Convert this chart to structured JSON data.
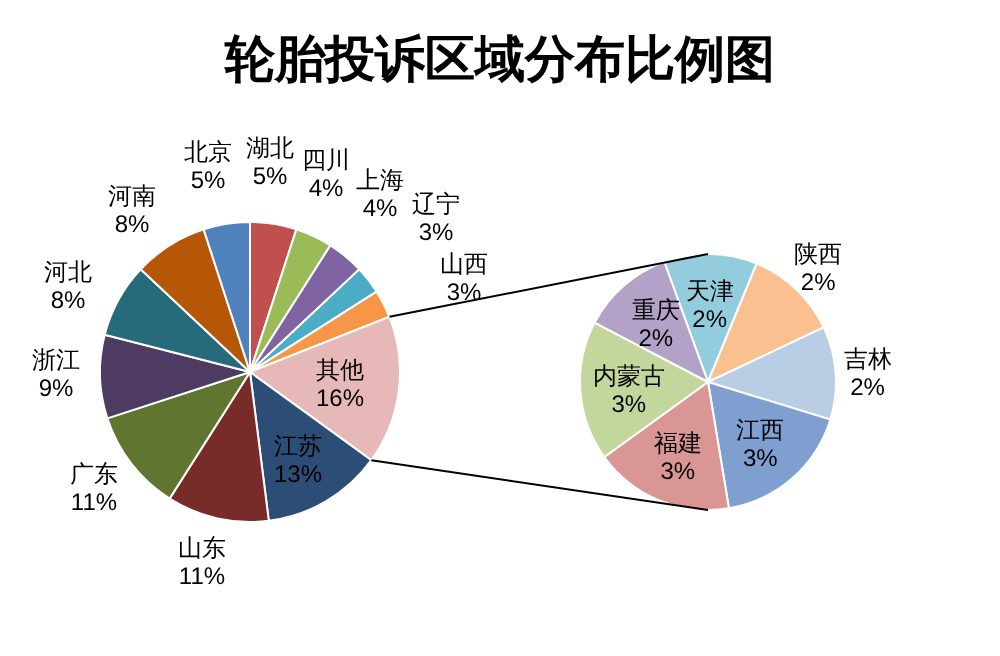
{
  "chart_data": [
    {
      "type": "pie",
      "title": "轮胎投诉区域分布比例图",
      "categories": [
        "湖北",
        "四川",
        "上海",
        "辽宁",
        "山西",
        "其他",
        "江苏",
        "山东",
        "广东",
        "浙江",
        "河北",
        "河南",
        "北京"
      ],
      "values": [
        5,
        4,
        4,
        3,
        3,
        16,
        13,
        11,
        11,
        9,
        8,
        8,
        5
      ],
      "value_labels": [
        "5%",
        "4%",
        "4%",
        "3%",
        "3%",
        "16%",
        "13%",
        "11%",
        "11%",
        "9%",
        "8%",
        "8%",
        "5%"
      ],
      "colors": [
        "#c0504d",
        "#9bbb59",
        "#8064a2",
        "#4bacc6",
        "#f79646",
        "#e6b9b8",
        "#2c4d75",
        "#772c2a",
        "#5f7530",
        "#4d3b62",
        "#276a7c",
        "#b65708",
        "#4f81bd"
      ]
    },
    {
      "type": "pie",
      "categories": [
        "天津",
        "陕西",
        "吉林",
        "江西",
        "福建",
        "内蒙古",
        "重庆"
      ],
      "values": [
        2,
        2,
        2,
        3,
        3,
        3,
        2
      ],
      "value_labels": [
        "2%",
        "2%",
        "2%",
        "3%",
        "3%",
        "3%",
        "2%"
      ],
      "colors": [
        "#93cddd",
        "#fac090",
        "#b9cde5",
        "#7f9fd0",
        "#d99694",
        "#c3d69b",
        "#b3a2c7"
      ]
    }
  ]
}
